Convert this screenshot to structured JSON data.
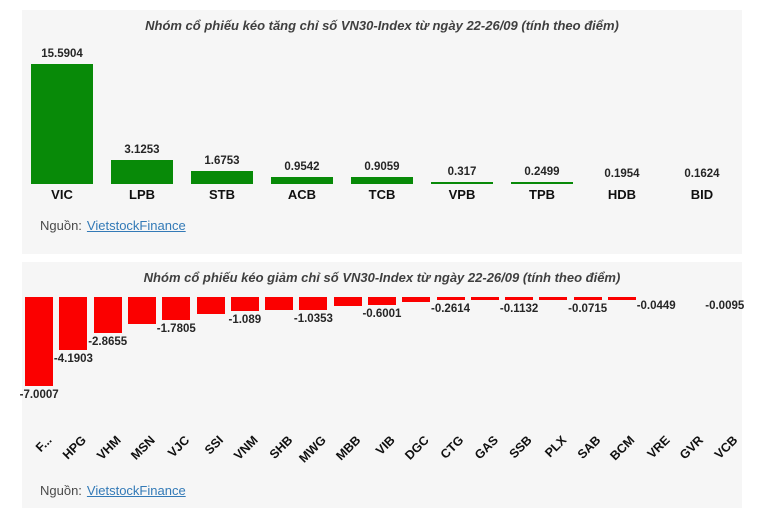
{
  "source": {
    "label": "Nguồn:",
    "link_text": "VietstockFinance"
  },
  "colors": {
    "gain_bar": "#088a08",
    "loss_bar": "#fb0000",
    "panel_background": "#f6f6f6",
    "title_text": "#3f3f3f",
    "link_blue": "#337ab7"
  },
  "chart_data": [
    {
      "type": "bar",
      "title": "Nhóm cổ phiếu kéo tăng chỉ số VN30-Index từ ngày 22-26/09 (tính theo điểm)",
      "categories": [
        "VIC",
        "LPB",
        "STB",
        "ACB",
        "TCB",
        "VPB",
        "TPB",
        "HDB",
        "BID"
      ],
      "values": [
        15.5904,
        3.1253,
        1.6753,
        0.9542,
        0.9059,
        0.317,
        0.2499,
        0.1954,
        0.1624
      ],
      "data_labels": [
        "15.5904",
        "3.1253",
        "1.6753",
        "0.9542",
        "0.9059",
        "0.317",
        "0.2499",
        "0.1954",
        "0.1624"
      ],
      "bar_color": "#088a08",
      "xlabel": "",
      "ylabel": "",
      "ylim": [
        0,
        16
      ],
      "grid": false,
      "legend": false
    },
    {
      "type": "bar",
      "title": "Nhóm cổ phiếu kéo giảm chỉ số VN30-Index từ ngày 22-26/09 (tính theo điểm)",
      "categories": [
        "F...",
        "HPG",
        "VHM",
        "MSN",
        "VJC",
        "SSI",
        "VNM",
        "SHB",
        "MWG",
        "MBB",
        "VIB",
        "DGC",
        "CTG",
        "GAS",
        "SSB",
        "PLX",
        "SAB",
        "BCM",
        "VRE",
        "GVR",
        "VCB"
      ],
      "values": [
        -7.0007,
        -4.1903,
        -2.8655,
        -2.1,
        -1.7805,
        -1.3,
        -1.089,
        -1.05,
        -1.0353,
        -0.7,
        -0.6001,
        -0.38,
        -0.2614,
        -0.2,
        -0.1132,
        -0.09,
        -0.0715,
        -0.055,
        -0.0449,
        -0.02,
        -0.0095
      ],
      "data_labels": [
        "-7.0007",
        "-4.1903",
        "-2.8655",
        null,
        "-1.7805",
        null,
        "-1.089",
        null,
        "-1.0353",
        null,
        "-0.6001",
        null,
        "-0.2614",
        null,
        "-0.1132",
        null,
        "-0.0715",
        null,
        "-0.0449",
        null,
        "-0.0095"
      ],
      "bar_color": "#fb0000",
      "xlabel": "",
      "ylabel": "",
      "ylim": [
        -8,
        0
      ],
      "grid": false,
      "legend": false
    }
  ]
}
